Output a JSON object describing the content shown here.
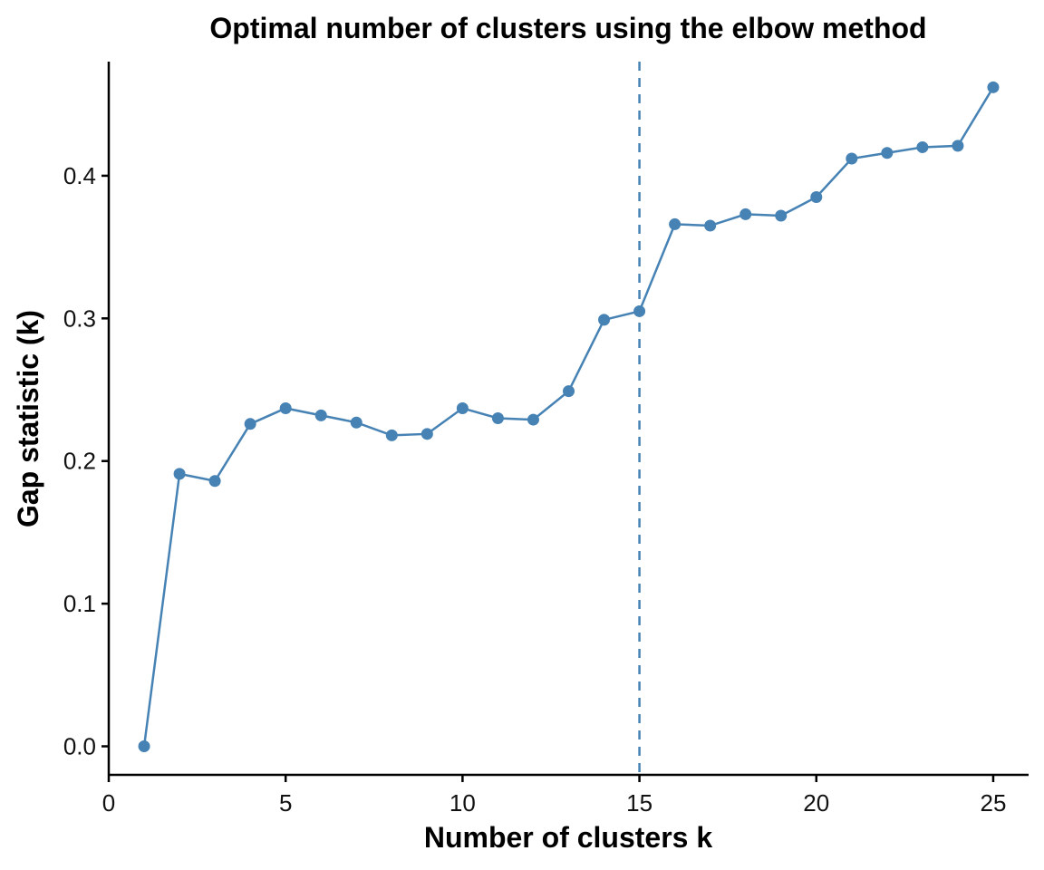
{
  "chart_data": {
    "type": "line",
    "title": "Optimal number of clusters using the elbow method",
    "xlabel": "Number of clusters k",
    "ylabel": "Gap statistic (k)",
    "xlim": [
      0,
      26
    ],
    "ylim": [
      -0.02,
      0.48
    ],
    "x_ticks": [
      0,
      5,
      10,
      15,
      20,
      25
    ],
    "x_tick_labels": [
      "0",
      "5",
      "10",
      "15",
      "20",
      "25"
    ],
    "y_ticks": [
      0.0,
      0.1,
      0.2,
      0.3,
      0.4
    ],
    "y_tick_labels": [
      "0.0",
      "0.1",
      "0.2",
      "0.3",
      "0.4"
    ],
    "grid": false,
    "color": "#4682B4",
    "vline": {
      "x": 15,
      "style": "dashed"
    },
    "x": [
      1,
      2,
      3,
      4,
      5,
      6,
      7,
      8,
      9,
      10,
      11,
      12,
      13,
      14,
      15,
      16,
      17,
      18,
      19,
      20,
      21,
      22,
      23,
      24,
      25
    ],
    "y": [
      0.0,
      0.191,
      0.186,
      0.226,
      0.237,
      0.232,
      0.227,
      0.218,
      0.219,
      0.237,
      0.23,
      0.229,
      0.249,
      0.299,
      0.305,
      0.366,
      0.365,
      0.373,
      0.372,
      0.385,
      0.412,
      0.416,
      0.42,
      0.421,
      0.462
    ]
  }
}
